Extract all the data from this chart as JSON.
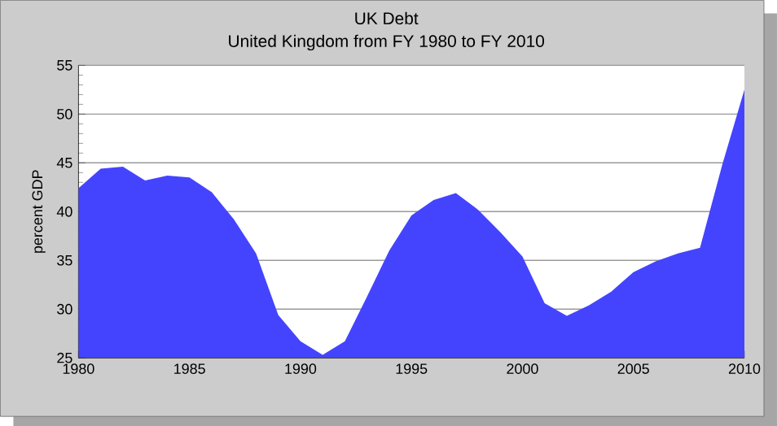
{
  "chart_data": {
    "type": "area",
    "title": "UK Debt",
    "subtitle": "United Kingdom from FY 1980 to FY 2010",
    "ylabel": "percent GDP",
    "x": [
      1980,
      1981,
      1982,
      1983,
      1984,
      1985,
      1986,
      1987,
      1988,
      1989,
      1990,
      1991,
      1992,
      1993,
      1994,
      1995,
      1996,
      1997,
      1998,
      1999,
      2000,
      2001,
      2002,
      2003,
      2004,
      2005,
      2006,
      2007,
      2008,
      2009,
      2010
    ],
    "values": [
      42.4,
      44.4,
      44.6,
      43.2,
      43.7,
      43.5,
      42.0,
      39.2,
      35.7,
      29.4,
      26.7,
      25.3,
      26.7,
      31.3,
      36.0,
      39.6,
      41.2,
      41.9,
      40.2,
      37.9,
      35.4,
      30.6,
      29.3,
      30.4,
      31.8,
      33.8,
      34.9,
      35.7,
      36.3,
      44.8,
      52.5
    ],
    "color": "#4444ff",
    "xlim": [
      1980,
      2010
    ],
    "xticks": [
      1980,
      1985,
      1990,
      1995,
      2000,
      2005,
      2010
    ],
    "ylim": [
      25,
      55
    ],
    "yticks": [
      25,
      30,
      35,
      40,
      45,
      50,
      55
    ],
    "grid": "y"
  }
}
